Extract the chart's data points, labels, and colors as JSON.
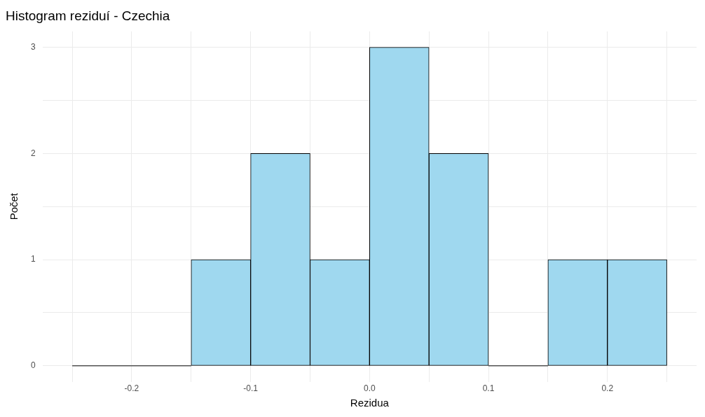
{
  "chart_data": {
    "type": "histogram",
    "title": "Histogram reziduí - Czechia",
    "xlabel": "Rezidua",
    "ylabel": "Počet",
    "bins": [
      -0.25,
      -0.2,
      -0.15,
      -0.1,
      -0.05,
      0.0,
      0.05,
      0.1,
      0.15,
      0.2,
      0.25
    ],
    "values": [
      0,
      0,
      1,
      2,
      1,
      3,
      2,
      0,
      1,
      1
    ],
    "color": "#9fd8ef",
    "xlim": [
      -0.275,
      0.275
    ],
    "xticks": [
      {
        "value": -0.25,
        "label": null
      },
      {
        "value": -0.2,
        "label": "-0.2"
      },
      {
        "value": -0.15,
        "label": null
      },
      {
        "value": -0.1,
        "label": "-0.1"
      },
      {
        "value": -0.05,
        "label": null
      },
      {
        "value": 0,
        "label": "0.0"
      },
      {
        "value": 0.05,
        "label": null
      },
      {
        "value": 0.1,
        "label": "0.1"
      },
      {
        "value": 0.15,
        "label": null
      },
      {
        "value": 0.2,
        "label": "0.2"
      },
      {
        "value": 0.25,
        "label": null
      }
    ],
    "ylim": [
      -0.15,
      3.15
    ],
    "yticks": [
      0,
      {
        "value": 0.5,
        "label": null
      },
      1,
      {
        "value": 1.5,
        "label": null
      },
      2,
      {
        "value": 2.5,
        "label": null
      },
      3
    ],
    "grid": true
  }
}
